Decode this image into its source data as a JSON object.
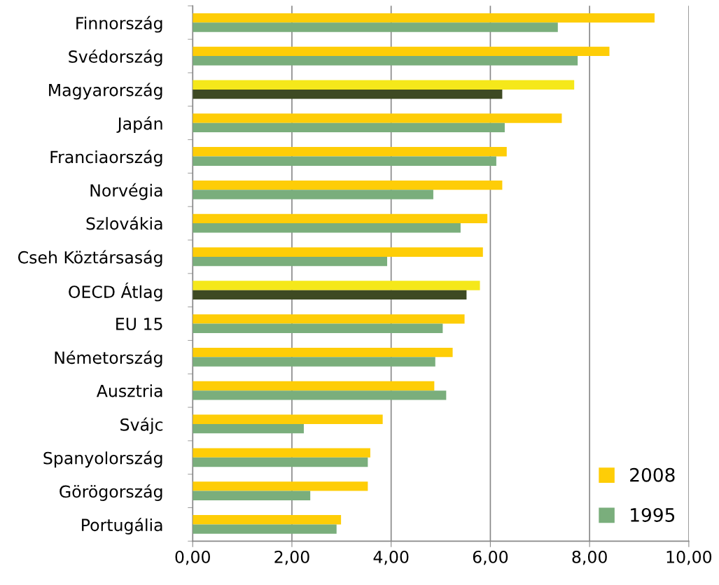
{
  "chart_data": {
    "type": "bar",
    "orientation": "horizontal",
    "categories": [
      "Finnország",
      "Svédország",
      "Magyarország",
      "Japán",
      "Franciaország",
      "Norvégia",
      "Szlovákia",
      "Cseh Köztársaság",
      "OECD Átlag",
      "EU 15",
      "Németország",
      "Ausztria",
      "Svájc",
      "Spanyolország",
      "Görögország",
      "Portugália"
    ],
    "series": [
      {
        "name": "2008",
        "color": "#fecd07",
        "colors": [
          "#fecd07",
          "#fecd07",
          "#f5e81a",
          "#fecd07",
          "#fecd07",
          "#fecd07",
          "#fecd07",
          "#fecd07",
          "#f5e81a",
          "#fecd07",
          "#fecd07",
          "#fecd07",
          "#fecd07",
          "#fecd07",
          "#fecd07",
          "#fecd07"
        ],
        "values": [
          9.31,
          8.4,
          7.69,
          7.44,
          6.33,
          6.24,
          5.94,
          5.85,
          5.79,
          5.48,
          5.24,
          4.87,
          3.83,
          3.58,
          3.53,
          2.99
        ]
      },
      {
        "name": "1995",
        "color": "#7aae7c",
        "colors": [
          "#7aae7c",
          "#7aae7c",
          "#3e4a23",
          "#7aae7c",
          "#7aae7c",
          "#7aae7c",
          "#7aae7c",
          "#7aae7c",
          "#3e4a23",
          "#7aae7c",
          "#7aae7c",
          "#7aae7c",
          "#7aae7c",
          "#7aae7c",
          "#7aae7c",
          "#7aae7c"
        ],
        "values": [
          7.36,
          7.76,
          6.24,
          6.29,
          6.12,
          4.85,
          5.4,
          3.92,
          5.52,
          5.04,
          4.89,
          5.11,
          2.24,
          3.53,
          2.37,
          2.9
        ]
      }
    ],
    "xlim": [
      0,
      10
    ],
    "xticks": [
      {
        "value": 0,
        "label": "0,00"
      },
      {
        "value": 2,
        "label": "2,00"
      },
      {
        "value": 4,
        "label": "4,00"
      },
      {
        "value": 6,
        "label": "6,00"
      },
      {
        "value": 8,
        "label": "8,00"
      },
      {
        "value": 10,
        "label": "10,00"
      }
    ],
    "grid": "x",
    "legend": "bottom right"
  }
}
